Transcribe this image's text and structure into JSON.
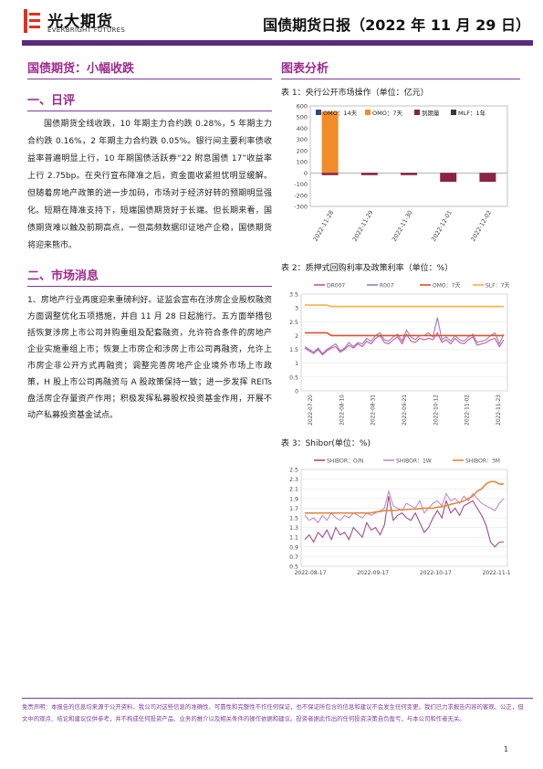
{
  "header": {
    "logo_cn": "光大期货",
    "logo_en": "EVERBRIGHT FUTURES",
    "report_title": "国债期货日报（2022 年 11 月 29 日）",
    "accent_color": "#5b2a7d",
    "logo_color": "#e0301e"
  },
  "left": {
    "main_title": "国债期货：小幅收跌",
    "section1_title": "一、日评",
    "section1_para": "国债期货全线收跌，10 年期主力合约跌 0.28%，5 年期主力合约跌 0.16%，2 年期主力合约跌 0.05%。银行间主要利率债收益率普遍明显上行，10 年期国债活跃券“22 附息国债 17”收益率上行 2.75bp。在央行宣布降准之后，资金面收紧担忧明显缓解。但随着房地产政策的进一步加码，市场对于经济好转的预期明显强化。短期在降准支持下，短端国债期货好于长端。但长期来看，国债期货难以触及前期高点，一但高频数据印证地产企稳，国债期货将迎来熊市。",
    "section2_title": "二、市场消息",
    "section2_para": "1、房地产行业再度迎来重磅利好。证监会宣布在涉房企业股权融资方面调整优化五项措施，并自 11 月 28 日起施行。五方面举措包括恢复涉房上市公司并购重组及配套融资，允许符合条件的房地产企业实施重组上市；恢复上市房企和涉房上市公司再融资，允许上市房企非公开方式再融资；调整完善房地产企业境外市场上市政策，H 股上市公司再融资与 A 股政策保持一致；进一步发挥 REITs 盘活房企存量资产作用；积极发挥私募股权投资基金作用，开展不动产私募投资基金试点。"
  },
  "right": {
    "section_title": "图表分析",
    "table1_caption": "表 1：央行公开市场操作（单位：亿元）",
    "table2_caption": "表 2：质押式回购利率及政策利率（单位：%）",
    "table3_caption": "表 3：Shibor(单位：%)"
  },
  "footer": {
    "disclaimer": "免责声明：本报告的信息均来源于公开资料，我公司对这些信息的准确性、可靠性和完整性不作任何保证，也不保证所包含的信息和建议不会发生任何变更。我们已力求报告内容的客观、公正，但文中的观点、结论和建议仅供参考，并不构成任何投资产品、业务的推介以及相关条件的操作依据和建议。投资者据此作出的任何投资决策自负盈亏，与本公司和作者无关。",
    "page_number": "1"
  },
  "chart_data": [
    {
      "type": "bar",
      "title": "表 1：央行公开市场操作（单位：亿元）",
      "categories": [
        "2022-11-28",
        "2022-11-29",
        "2022-11-30",
        "2022-12-01",
        "2022-12-02"
      ],
      "series": [
        {
          "name": "OMO：14天",
          "color": "#2e4a7a",
          "values": [
            0,
            0,
            0,
            0,
            0
          ]
        },
        {
          "name": "OMO：7天",
          "color": "#f28c28",
          "values": [
            550,
            0,
            0,
            0,
            0
          ]
        },
        {
          "name": "到期量",
          "color": "#8b2346",
          "values": [
            -20,
            -20,
            -20,
            -80,
            -80
          ]
        },
        {
          "name": "MLF：1年",
          "color": "#3a3a3a",
          "values": [
            0,
            0,
            0,
            0,
            0
          ]
        }
      ],
      "ylim": [
        -300,
        600
      ],
      "yticks": [
        600,
        500,
        400,
        300,
        200,
        100,
        0,
        -100,
        -200,
        -300
      ],
      "legend": "top"
    },
    {
      "type": "line",
      "title": "表 2：质押式回购利率及政策利率（单位：%）",
      "x_labels": [
        "2022-07-20",
        "2022-08-10",
        "2022-08-31",
        "2022-09-21",
        "2022-10-12",
        "2022-11-02",
        "2022-11-23"
      ],
      "ylim": [
        0,
        3.5
      ],
      "yticks": [
        3.5,
        3,
        2.5,
        2,
        1.5,
        1,
        0.5,
        0
      ],
      "series": [
        {
          "name": "DR007",
          "color": "#c8559a",
          "values": [
            1.55,
            1.45,
            1.35,
            1.5,
            1.3,
            1.45,
            1.55,
            1.6,
            1.4,
            1.5,
            1.65,
            1.55,
            1.7,
            1.6,
            1.8,
            1.7,
            1.9,
            2.0,
            1.75,
            1.7,
            1.85,
            1.95,
            1.7,
            2.05,
            1.8,
            1.75,
            1.9,
            1.85,
            1.9,
            1.85,
            2.1,
            1.75,
            1.85,
            1.7,
            1.9,
            1.75,
            1.7,
            1.85,
            1.95,
            1.65,
            1.7,
            1.75,
            1.85,
            1.9,
            1.6,
            1.85
          ]
        },
        {
          "name": "R007",
          "color": "#9b7bc0",
          "values": [
            1.6,
            1.5,
            1.4,
            1.55,
            1.35,
            1.5,
            1.6,
            1.7,
            1.45,
            1.55,
            1.75,
            1.6,
            1.75,
            1.7,
            1.9,
            1.8,
            2.0,
            2.1,
            1.85,
            1.8,
            1.95,
            2.05,
            1.8,
            2.2,
            1.95,
            1.85,
            2.0,
            2.0,
            2.1,
            1.95,
            2.65,
            1.85,
            1.95,
            1.8,
            2.0,
            1.85,
            1.8,
            1.95,
            2.05,
            1.75,
            1.8,
            1.85,
            2.0,
            2.1,
            1.7,
            2.05
          ]
        },
        {
          "name": "OMO：7天",
          "color": "#d9532c",
          "values": [
            2.1,
            2.1,
            2.1,
            2.1,
            2.1,
            2.1,
            2.0,
            2.0,
            2.0,
            2.0,
            2.0,
            2.0,
            2.0,
            2.0,
            2.0,
            2.0,
            2.0,
            2.0,
            2.0,
            2.0,
            2.0,
            2.0,
            2.0,
            2.0,
            2.0,
            2.0,
            2.0,
            2.0,
            2.0,
            2.0,
            2.0,
            2.0,
            2.0,
            2.0,
            2.0,
            2.0,
            2.0,
            2.0,
            2.0,
            2.0,
            2.0,
            2.0,
            2.0,
            2.0,
            2.0,
            2.0
          ]
        },
        {
          "name": "SLF：7天",
          "color": "#f2b344",
          "values": [
            3.1,
            3.1,
            3.1,
            3.1,
            3.1,
            3.1,
            3.05,
            3.05,
            3.05,
            3.05,
            3.05,
            3.05,
            3.05,
            3.05,
            3.05,
            3.05,
            3.05,
            3.05,
            3.05,
            3.05,
            3.05,
            3.05,
            3.05,
            3.05,
            3.05,
            3.05,
            3.05,
            3.05,
            3.05,
            3.05,
            3.05,
            3.05,
            3.05,
            3.05,
            3.05,
            3.05,
            3.05,
            3.05,
            3.05,
            3.05,
            3.05,
            3.05,
            3.05,
            3.05,
            3.05,
            3.05
          ]
        }
      ],
      "legend": "top",
      "grid": true
    },
    {
      "type": "line",
      "title": "表 3：Shibor(单位：%)",
      "x_labels": [
        "2022-08-17",
        "2022-09-17",
        "2022-10-17",
        "2022-11-17"
      ],
      "ylim": [
        0,
        2.5
      ],
      "yticks": [
        2.5,
        2.3,
        2.1,
        1.9,
        1.7,
        1.5,
        1.3,
        1.1,
        0.9,
        0.7,
        0.5
      ],
      "series": [
        {
          "name": "SHIBOR：O/N",
          "color": "#a04d8c",
          "values": [
            1.05,
            1.15,
            1.0,
            1.2,
            1.1,
            1.25,
            1.05,
            1.3,
            1.15,
            1.2,
            1.05,
            1.3,
            1.2,
            1.1,
            1.4,
            1.25,
            1.3,
            1.15,
            1.35,
            1.95,
            1.45,
            1.55,
            1.6,
            1.5,
            1.45,
            1.6,
            1.4,
            1.2,
            1.3,
            1.5,
            1.65,
            1.5,
            1.85,
            1.6,
            1.7,
            1.55,
            1.75,
            1.8,
            1.85,
            1.7,
            1.55,
            1.35,
            1.0,
            0.9,
            1.0,
            1.0
          ]
        },
        {
          "name": "SHIBOR：1W",
          "color": "#c48bd0",
          "values": [
            1.55,
            1.45,
            1.5,
            1.4,
            1.55,
            1.45,
            1.6,
            1.5,
            1.45,
            1.55,
            1.5,
            1.6,
            1.55,
            1.5,
            1.6,
            1.55,
            1.6,
            1.65,
            1.7,
            2.05,
            1.75,
            1.7,
            1.65,
            1.8,
            1.75,
            1.7,
            1.85,
            1.6,
            1.7,
            1.8,
            1.85,
            1.75,
            2.0,
            1.85,
            1.9,
            1.8,
            1.95,
            1.85,
            2.0,
            1.9,
            1.8,
            1.75,
            1.7,
            1.65,
            1.8,
            1.9
          ]
        },
        {
          "name": "SHIBOR：3M",
          "color": "#e08a3a",
          "values": [
            1.6,
            1.6,
            1.6,
            1.6,
            1.6,
            1.6,
            1.6,
            1.6,
            1.6,
            1.6,
            1.6,
            1.6,
            1.6,
            1.6,
            1.6,
            1.6,
            1.62,
            1.63,
            1.65,
            1.65,
            1.65,
            1.66,
            1.67,
            1.67,
            1.68,
            1.68,
            1.69,
            1.7,
            1.7,
            1.7,
            1.72,
            1.73,
            1.75,
            1.78,
            1.8,
            1.82,
            1.85,
            1.9,
            1.95,
            2.05,
            2.1,
            2.2,
            2.25,
            2.25,
            2.2,
            2.2
          ]
        }
      ],
      "legend": "top",
      "grid": true
    }
  ]
}
